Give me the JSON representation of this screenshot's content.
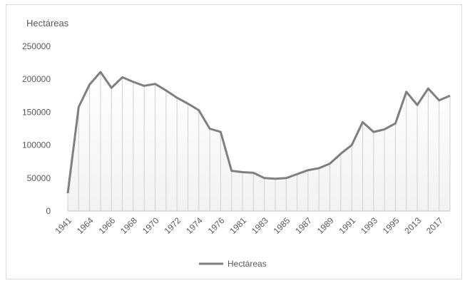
{
  "chart_data": {
    "type": "area",
    "ylabel": "Hectáreas",
    "ylim": [
      0,
      250000
    ],
    "yticks": [
      0,
      50000,
      100000,
      150000,
      200000,
      250000
    ],
    "x_tick_labels": [
      "1941",
      "1964",
      "1966",
      "1968",
      "1970",
      "1972",
      "1974",
      "1976",
      "1981",
      "1983",
      "1985",
      "1987",
      "1989",
      "1991",
      "1993",
      "1995",
      "2013",
      "2017"
    ],
    "legend": {
      "position": "bottom",
      "entries": [
        "Hectáreas"
      ]
    },
    "series": [
      {
        "name": "Hectáreas",
        "color": "#7f7f7f",
        "values": [
          27000,
          158000,
          192000,
          211000,
          187000,
          203000,
          196000,
          190000,
          193000,
          183000,
          172000,
          163000,
          153000,
          125000,
          120000,
          61000,
          59000,
          58000,
          50000,
          49000,
          50000,
          56000,
          62000,
          65000,
          72000,
          87000,
          100000,
          135000,
          120000,
          124000,
          133000,
          181000,
          161000,
          186000,
          168000,
          175000
        ]
      }
    ]
  }
}
